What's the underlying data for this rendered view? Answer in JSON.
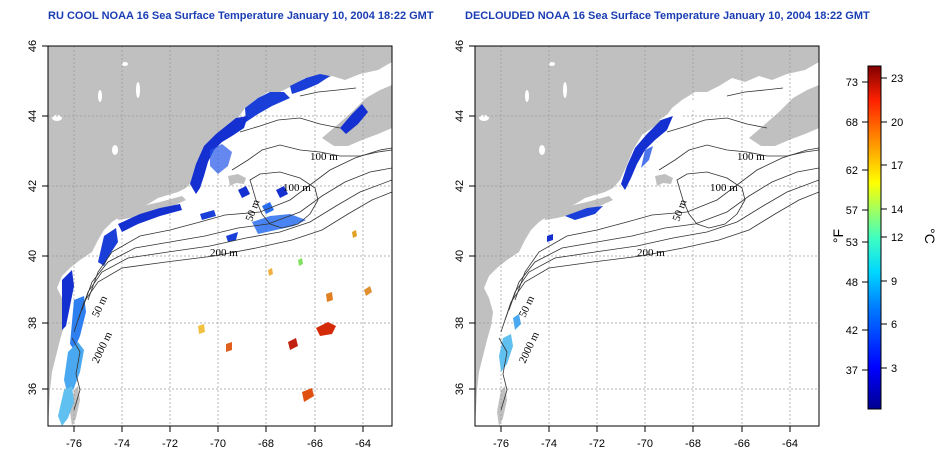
{
  "titles": {
    "left": "RU COOL NOAA 16 Sea Surface Temperature January 10, 2004 18:22 GMT",
    "right": "DECLOUDED NOAA 16 Sea Surface Temperature January 10, 2004 18:22 GMT"
  },
  "axes": {
    "lon_ticks": [
      "-76",
      "-74",
      "-72",
      "-70",
      "-68",
      "-66",
      "-64"
    ],
    "lat_ticks": [
      "36",
      "38",
      "40",
      "42",
      "44",
      "46"
    ]
  },
  "contour_labels": [
    "100 m",
    "100 m",
    "50 m",
    "200 m",
    "50 m",
    "2000 m"
  ],
  "colorbar": {
    "f_ticks": [
      "73",
      "68",
      "62",
      "57",
      "53",
      "48",
      "42",
      "37"
    ],
    "c_ticks": [
      "23",
      "20",
      "17",
      "14",
      "12",
      "9",
      "6",
      "3"
    ],
    "f_unit": "°F",
    "c_unit": "°C"
  },
  "colors": {
    "land": "#c0c0c0",
    "cold": "#1530d0",
    "warm": "#d42a08",
    "title": "#1a3db3"
  }
}
